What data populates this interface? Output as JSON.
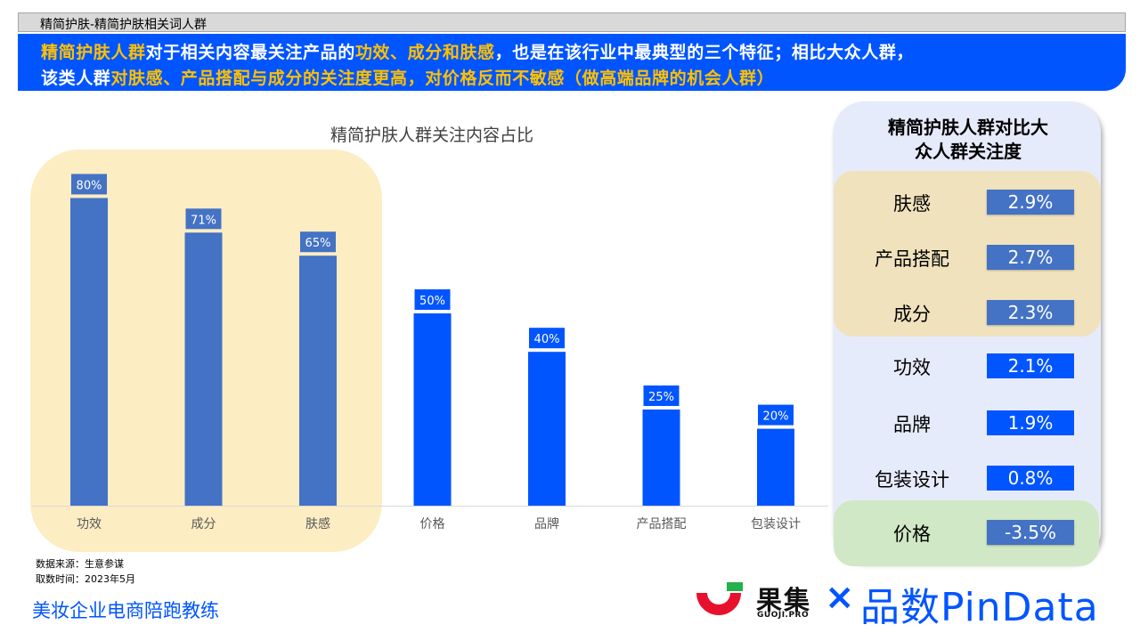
{
  "header": {
    "breadcrumb": "精简护肤-精简护肤相关词人群",
    "line1": [
      {
        "text": "精简护肤人群",
        "hl": true
      },
      {
        "text": "对于相关内容最关注产品的",
        "hl": false
      },
      {
        "text": "功效、成分和肤感",
        "hl": true
      },
      {
        "text": "，也是在该行业中最典型的三个特征；相比大众人群，",
        "hl": false
      }
    ],
    "line2": [
      {
        "text": "该类人群",
        "hl": false
      },
      {
        "text": "对肤感、产品搭配与成分的关注度更高，对价格反而不敏感（做高端品牌的机会人群）",
        "hl": true
      }
    ]
  },
  "chart_data": {
    "type": "bar",
    "title": "精简护肤人群关注内容占比",
    "categories": [
      "功效",
      "成分",
      "肤感",
      "价格",
      "品牌",
      "产品搭配",
      "包装设计"
    ],
    "values": [
      80,
      71,
      65,
      50,
      40,
      25,
      20
    ],
    "data_labels": [
      "80%",
      "71%",
      "65%",
      "50%",
      "40%",
      "25%",
      "20%"
    ],
    "highlighted_categories": [
      "功效",
      "成分",
      "肤感"
    ],
    "ylim": [
      0,
      100
    ],
    "colors": {
      "highlighted": "#4472c4",
      "normal": "#0055ff",
      "highlight_bg": "#fdedc3"
    }
  },
  "panel": {
    "title_line1": "精简护肤人群对比大",
    "title_line2": "众人群关注度",
    "rows": [
      {
        "label": "肤感",
        "value": "2.9%",
        "group": "top"
      },
      {
        "label": "产品搭配",
        "value": "2.7%",
        "group": "top"
      },
      {
        "label": "成分",
        "value": "2.3%",
        "group": "top"
      },
      {
        "label": "功效",
        "value": "2.1%",
        "group": "mid"
      },
      {
        "label": "品牌",
        "value": "1.9%",
        "group": "mid"
      },
      {
        "label": "包装设计",
        "value": "0.8%",
        "group": "mid"
      },
      {
        "label": "价格",
        "value": "-3.5%",
        "group": "low"
      }
    ]
  },
  "footer": {
    "source": "数据来源：生意参谋",
    "date": "取数时间：2023年5月",
    "brand": "美妆企业电商陪跑教练",
    "logo_cn": "果集",
    "logo_en": "GUOJI.PRO",
    "logo_x": "×",
    "logo_pindata": "品数PinData"
  }
}
